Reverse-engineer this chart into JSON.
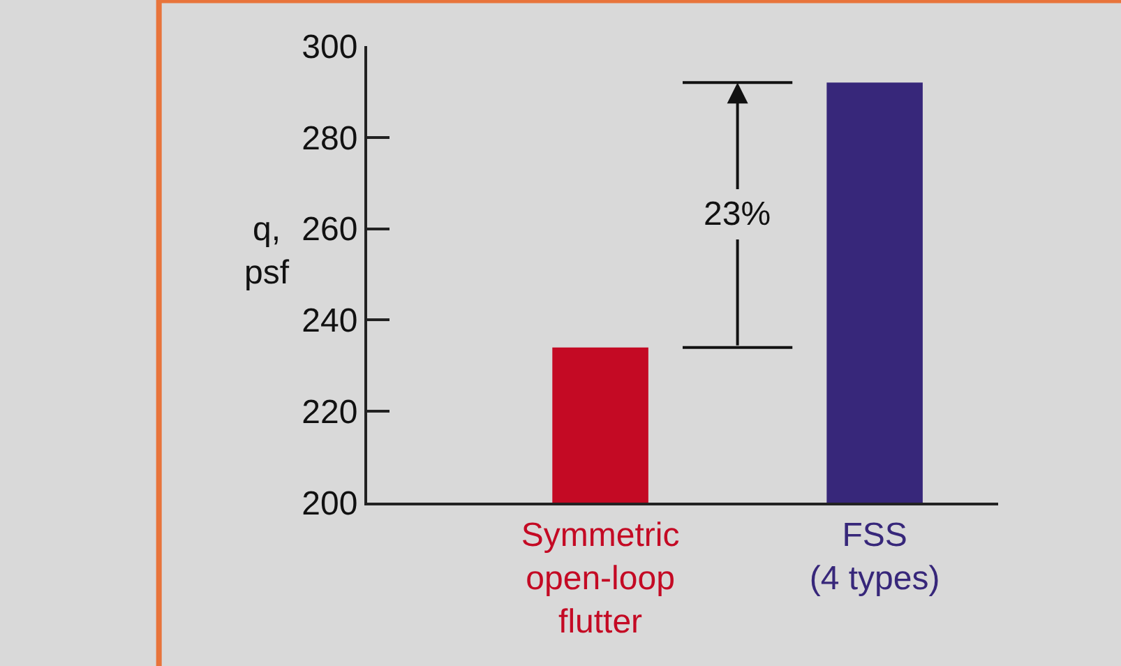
{
  "chart_data": {
    "type": "bar",
    "ylabel": "q,\npsf",
    "categories": [
      "Symmetric\nopen-loop\nflutter",
      "FSS\n(4 types)"
    ],
    "values": [
      234,
      292
    ],
    "colors": [
      "#c40a24",
      "#37277a"
    ],
    "ylim": [
      200,
      300
    ],
    "yticks": [
      200,
      220,
      240,
      260,
      280,
      300
    ],
    "grid": false,
    "legend": false,
    "ref_lines": [
      {
        "axis": "y",
        "value": 234
      },
      {
        "axis": "y",
        "value": 292
      }
    ],
    "annotations": [
      "23%"
    ]
  }
}
